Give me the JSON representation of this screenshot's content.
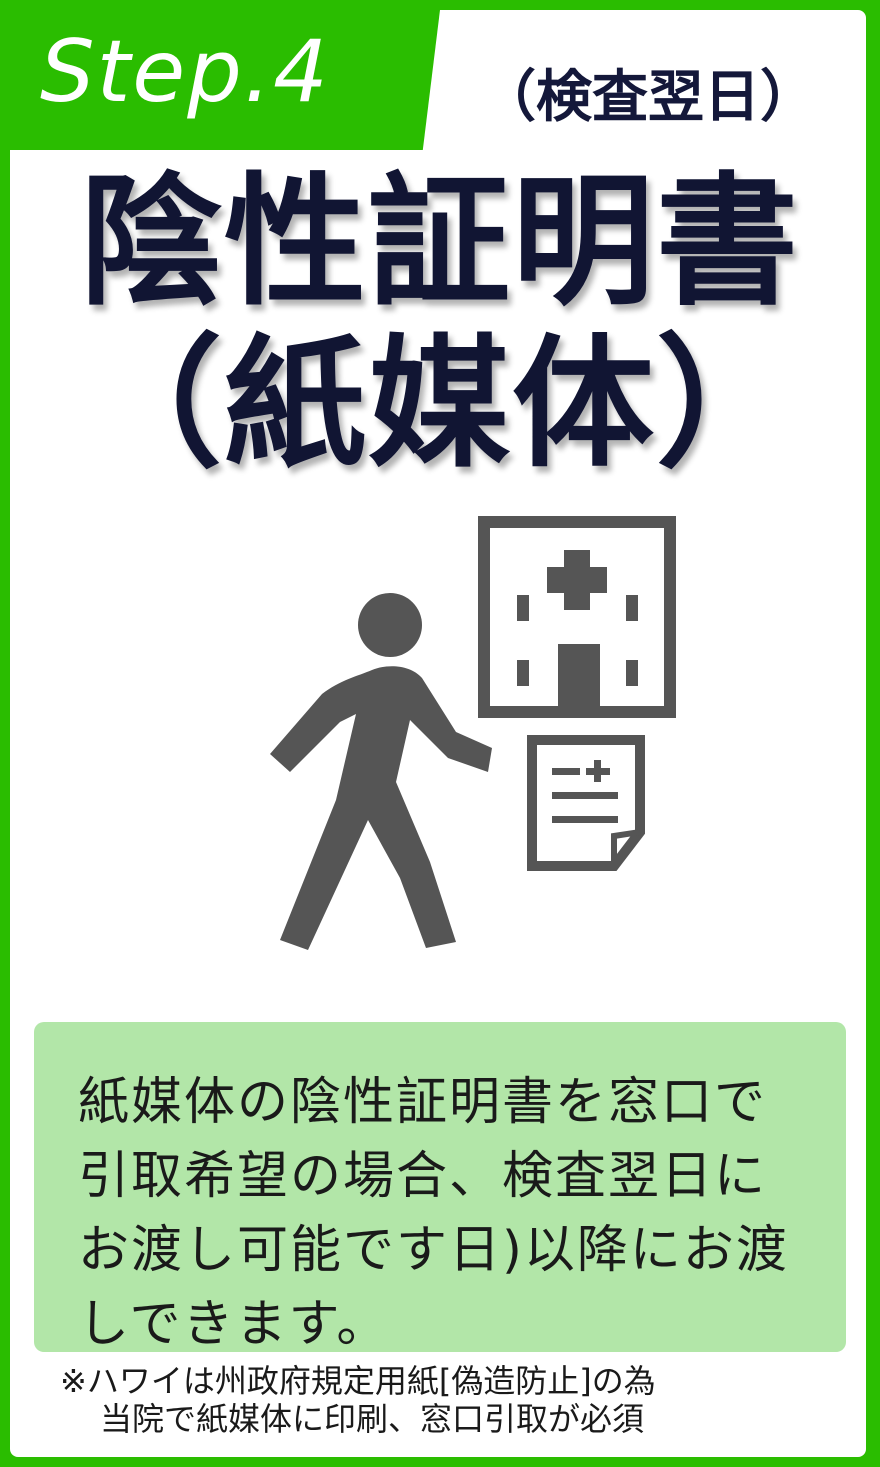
{
  "header": {
    "step_label": "Step.4",
    "step_timing": "（検査翌日）"
  },
  "title": {
    "line1": "陰性証明書",
    "line2": "（紙媒体）"
  },
  "illustration": {
    "icons": [
      "walking-person-icon",
      "hospital-building-icon",
      "document-icon"
    ],
    "color": "#555555"
  },
  "info": {
    "text": "紙媒体の陰性証明書を窓口で引取希望の場合、検査翌日にお渡し可能です日)以降にお渡しできます。"
  },
  "note": {
    "line1": "※ハワイは州政府規定用紙[偽造防止]の為",
    "line2": "当院で紙媒体に印刷、窓口引取が必須"
  },
  "colors": {
    "border_green": "#2abd00",
    "info_bg": "#b2e6a8",
    "title_navy": "#111533",
    "icon_gray": "#555555"
  }
}
